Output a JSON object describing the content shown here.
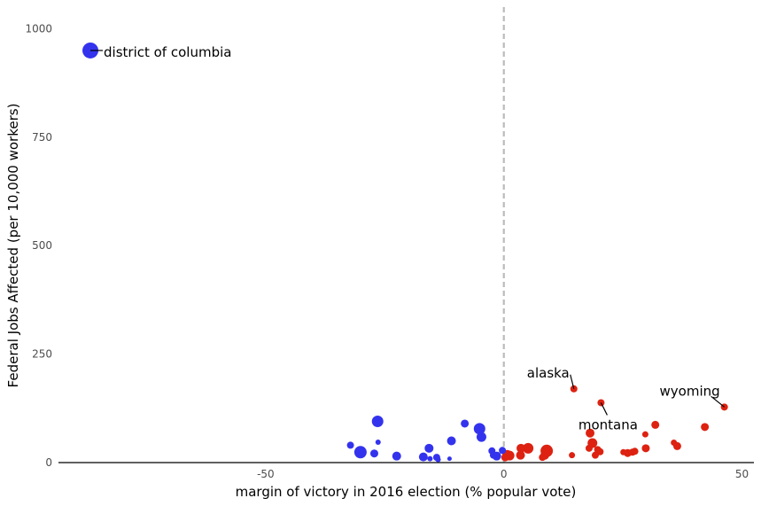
{
  "chart_data": {
    "type": "scatter",
    "xlabel": "margin of victory in 2016 election (% popular vote)",
    "ylabel": "Federal Jobs Affected (per 10,000 workers)",
    "xlim": [
      -93.5,
      52.5
    ],
    "ylim": [
      0,
      1050
    ],
    "x_ticks": [
      -50,
      0,
      50
    ],
    "x_tick_labels": [
      "-50",
      "0",
      "50"
    ],
    "y_ticks": [
      0,
      250,
      500,
      750,
      1000
    ],
    "y_tick_labels": [
      "0",
      "250",
      "500",
      "750",
      "1000"
    ],
    "grid": false,
    "legend": "none",
    "reference_line": {
      "x": 0,
      "style": "dashed",
      "color": "#bbbbbb"
    },
    "colors": {
      "democrat": "#3333ee",
      "republican": "#dd2211"
    },
    "points": [
      {
        "x": -86.8,
        "y": 950,
        "size": 9,
        "party": "democrat"
      },
      {
        "x": -32.2,
        "y": 40,
        "size": 4,
        "party": "democrat"
      },
      {
        "x": -30.1,
        "y": 24,
        "size": 7,
        "party": "democrat"
      },
      {
        "x": -27.2,
        "y": 21,
        "size": 4.5,
        "party": "democrat"
      },
      {
        "x": -26.5,
        "y": 95,
        "size": 6.5,
        "party": "democrat"
      },
      {
        "x": -26.4,
        "y": 47,
        "size": 3,
        "party": "democrat"
      },
      {
        "x": -22.5,
        "y": 15,
        "size": 5,
        "party": "democrat"
      },
      {
        "x": -16.9,
        "y": 13,
        "size": 5,
        "party": "democrat"
      },
      {
        "x": -15.7,
        "y": 33,
        "size": 5,
        "party": "democrat"
      },
      {
        "x": -15.5,
        "y": 9,
        "size": 3,
        "party": "democrat"
      },
      {
        "x": -14.1,
        "y": 12,
        "size": 4,
        "party": "democrat"
      },
      {
        "x": -13.8,
        "y": 7,
        "size": 3,
        "party": "democrat"
      },
      {
        "x": -11.4,
        "y": 9,
        "size": 2.5,
        "party": "democrat"
      },
      {
        "x": -11.0,
        "y": 50,
        "size": 5,
        "party": "democrat"
      },
      {
        "x": -8.2,
        "y": 90,
        "size": 4.5,
        "party": "democrat"
      },
      {
        "x": -5.1,
        "y": 78,
        "size": 6.5,
        "party": "democrat"
      },
      {
        "x": -4.7,
        "y": 59,
        "size": 5.5,
        "party": "democrat"
      },
      {
        "x": -2.5,
        "y": 27,
        "size": 4,
        "party": "democrat"
      },
      {
        "x": -2.2,
        "y": 17,
        "size": 4,
        "party": "democrat"
      },
      {
        "x": -1.5,
        "y": 15,
        "size": 5,
        "party": "democrat"
      },
      {
        "x": -0.3,
        "y": 28,
        "size": 4,
        "party": "democrat"
      },
      {
        "x": 0.3,
        "y": 12,
        "size": 4.5,
        "party": "republican"
      },
      {
        "x": 0.7,
        "y": 18,
        "size": 5.5,
        "party": "republican"
      },
      {
        "x": 1.2,
        "y": 16,
        "size": 5.5,
        "party": "republican"
      },
      {
        "x": 3.5,
        "y": 17,
        "size": 5,
        "party": "republican"
      },
      {
        "x": 3.6,
        "y": 33,
        "size": 5,
        "party": "republican"
      },
      {
        "x": 5.1,
        "y": 33,
        "size": 6,
        "party": "republican"
      },
      {
        "x": 8.1,
        "y": 12,
        "size": 4,
        "party": "republican"
      },
      {
        "x": 8.6,
        "y": 17,
        "size": 5,
        "party": "republican"
      },
      {
        "x": 9.0,
        "y": 27,
        "size": 7,
        "party": "republican"
      },
      {
        "x": 14.3,
        "y": 17,
        "size": 3.5,
        "party": "republican"
      },
      {
        "x": 14.7,
        "y": 170,
        "size": 4,
        "party": "republican"
      },
      {
        "x": 17.9,
        "y": 33,
        "size": 4,
        "party": "republican"
      },
      {
        "x": 18.1,
        "y": 68,
        "size": 5,
        "party": "republican"
      },
      {
        "x": 18.6,
        "y": 45,
        "size": 5.5,
        "party": "republican"
      },
      {
        "x": 19.2,
        "y": 17,
        "size": 4,
        "party": "republican"
      },
      {
        "x": 19.7,
        "y": 30,
        "size": 4,
        "party": "republican"
      },
      {
        "x": 20.2,
        "y": 25,
        "size": 4,
        "party": "republican"
      },
      {
        "x": 20.4,
        "y": 138,
        "size": 4,
        "party": "republican"
      },
      {
        "x": 25.1,
        "y": 24,
        "size": 3.5,
        "party": "republican"
      },
      {
        "x": 26.0,
        "y": 22,
        "size": 4.5,
        "party": "republican"
      },
      {
        "x": 27.0,
        "y": 24,
        "size": 4,
        "party": "republican"
      },
      {
        "x": 27.5,
        "y": 26,
        "size": 4,
        "party": "republican"
      },
      {
        "x": 29.7,
        "y": 65,
        "size": 3.5,
        "party": "republican"
      },
      {
        "x": 29.8,
        "y": 33,
        "size": 4.5,
        "party": "republican"
      },
      {
        "x": 31.8,
        "y": 87,
        "size": 4.5,
        "party": "republican"
      },
      {
        "x": 35.7,
        "y": 46,
        "size": 3.5,
        "party": "republican"
      },
      {
        "x": 36.4,
        "y": 38,
        "size": 4.5,
        "party": "republican"
      },
      {
        "x": 42.2,
        "y": 82,
        "size": 4.5,
        "party": "republican"
      },
      {
        "x": 46.3,
        "y": 128,
        "size": 4,
        "party": "republican"
      }
    ],
    "annotations": [
      {
        "text": "district of columbia",
        "x": -86.8,
        "y": 950,
        "anchor": "start"
      },
      {
        "text": "alaska",
        "x": 14.7,
        "y": 170,
        "anchor": "end"
      },
      {
        "text": "montana",
        "x": 20.4,
        "y": 138,
        "anchor": "middle"
      },
      {
        "text": "wyoming",
        "x": 46.3,
        "y": 128,
        "anchor": "end"
      }
    ]
  }
}
